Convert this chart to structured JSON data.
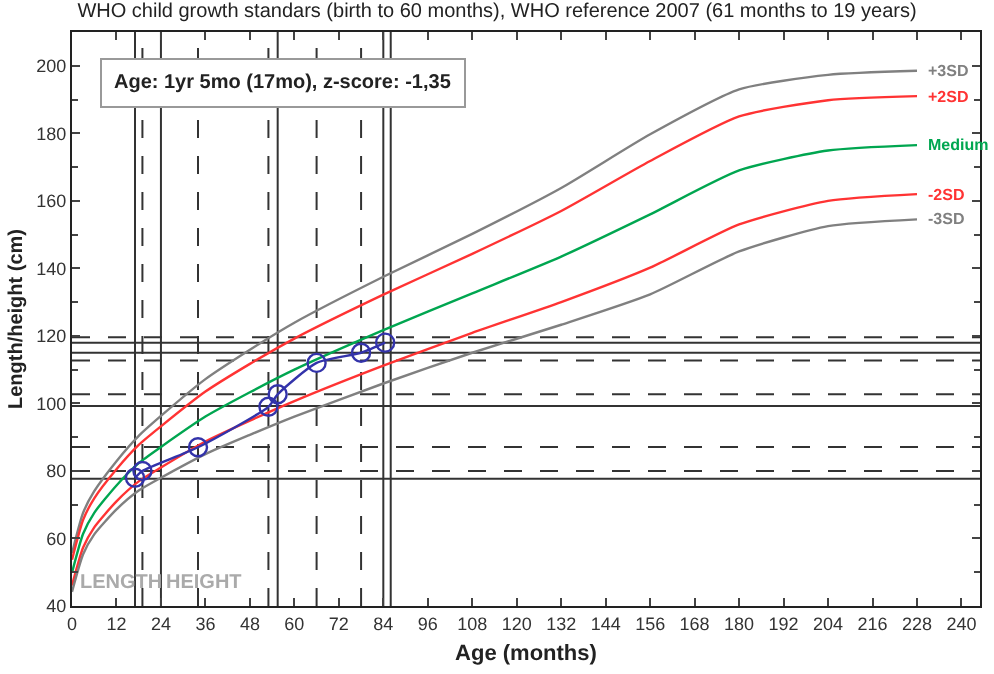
{
  "chart_data": {
    "type": "line",
    "title": "WHO child growth standars (birth to 60 months), WHO reference 2007 (61 months to 19 years)",
    "xlabel": "Age (months)",
    "ylabel": "Length/height (cm)",
    "xlim": [
      0,
      245
    ],
    "xticks": [
      0,
      12,
      24,
      36,
      48,
      60,
      72,
      84,
      96,
      108,
      120,
      132,
      144,
      156,
      168,
      180,
      192,
      204,
      216,
      228,
      240
    ],
    "ylim": [
      40,
      210
    ],
    "yticks": [
      40,
      60,
      80,
      100,
      120,
      140,
      160,
      180,
      200
    ],
    "grid": false,
    "legend": false,
    "line_style": "solid",
    "series": [
      {
        "name": "+3SD",
        "color": "#808080",
        "marker": "none",
        "x": [
          0,
          3,
          6,
          12,
          18,
          24,
          36,
          48,
          60,
          84,
          108,
          132,
          156,
          180,
          204,
          228
        ],
        "values": [
          55.6,
          67.6,
          74.0,
          82.9,
          90.4,
          96.3,
          107.2,
          115.9,
          123.9,
          137.5,
          150.2,
          163.8,
          179.7,
          193.0,
          197.3,
          198.5
        ]
      },
      {
        "name": "+2SD",
        "color": "#ff3333",
        "marker": "none",
        "x": [
          0,
          3,
          6,
          12,
          18,
          24,
          36,
          48,
          60,
          84,
          108,
          132,
          156,
          180,
          204,
          228
        ],
        "values": [
          53.7,
          65.5,
          71.9,
          80.5,
          87.7,
          93.2,
          103.5,
          111.7,
          119.2,
          132.2,
          144.3,
          157.0,
          171.8,
          185.0,
          189.8,
          191.0
        ]
      },
      {
        "name": "Medium",
        "color": "#00a650",
        "marker": "none",
        "x": [
          0,
          3,
          6,
          12,
          18,
          24,
          36,
          48,
          60,
          84,
          108,
          132,
          156,
          180,
          204,
          228
        ],
        "values": [
          49.9,
          61.4,
          67.6,
          75.7,
          82.3,
          87.1,
          96.1,
          103.3,
          110.0,
          121.7,
          132.6,
          143.5,
          156.0,
          169.0,
          174.9,
          176.5
        ]
      },
      {
        "name": "-2SD",
        "color": "#ff3333",
        "marker": "none",
        "x": [
          0,
          3,
          6,
          12,
          18,
          24,
          36,
          48,
          60,
          84,
          108,
          132,
          156,
          180,
          204,
          228
        ],
        "values": [
          46.1,
          57.3,
          63.3,
          71.0,
          76.9,
          81.0,
          88.7,
          94.9,
          100.7,
          111.2,
          120.9,
          130.0,
          140.2,
          153.0,
          160.0,
          162.0
        ]
      },
      {
        "name": "-3SD",
        "color": "#808080",
        "marker": "none",
        "x": [
          0,
          3,
          6,
          12,
          18,
          24,
          36,
          48,
          60,
          84,
          108,
          132,
          156,
          180,
          204,
          228
        ],
        "values": [
          44.2,
          55.3,
          61.2,
          68.6,
          74.2,
          78.0,
          85.0,
          90.7,
          96.1,
          105.9,
          115.0,
          123.3,
          132.3,
          145.0,
          152.5,
          154.5
        ]
      },
      {
        "color": "#3333aa",
        "marker": "circle",
        "x": [
          17,
          19,
          34,
          53,
          55.5,
          66,
          78,
          84.5
        ],
        "values": [
          78,
          80,
          87,
          99,
          102.7,
          112,
          115,
          118
        ]
      }
    ],
    "ref_lines": [
      {
        "axis": "x",
        "value": 17,
        "line_style": "solid"
      },
      {
        "axis": "x",
        "value": 19,
        "line_style": "dashed"
      },
      {
        "axis": "x",
        "value": 24,
        "line_style": "solid"
      },
      {
        "axis": "x",
        "value": 34,
        "line_style": "dashed"
      },
      {
        "axis": "x",
        "value": 53,
        "line_style": "dashed"
      },
      {
        "axis": "x",
        "value": 55.5,
        "line_style": "solid"
      },
      {
        "axis": "x",
        "value": 66,
        "line_style": "dashed"
      },
      {
        "axis": "x",
        "value": 78,
        "line_style": "dashed"
      },
      {
        "axis": "x",
        "value": 84,
        "line_style": "solid"
      },
      {
        "axis": "x",
        "value": 86,
        "line_style": "solid"
      },
      {
        "axis": "y",
        "value": 119.6,
        "line_style": "dashed"
      },
      {
        "axis": "y",
        "value": 118,
        "line_style": "solid"
      },
      {
        "axis": "y",
        "value": 115,
        "line_style": "solid"
      },
      {
        "axis": "y",
        "value": 112.7,
        "line_style": "dashed"
      },
      {
        "axis": "y",
        "value": 102.7,
        "line_style": "dashed"
      },
      {
        "axis": "y",
        "value": 99.2,
        "line_style": "solid"
      },
      {
        "axis": "y",
        "value": 87.1,
        "line_style": "dashed"
      },
      {
        "axis": "y",
        "value": 80,
        "line_style": "dashed"
      },
      {
        "axis": "y",
        "value": 77.7,
        "line_style": "solid"
      }
    ],
    "annotations": [
      "Age: 1yr 5mo (17mo), z-score: -1,35",
      "LENGTH",
      "HEIGHT"
    ]
  }
}
